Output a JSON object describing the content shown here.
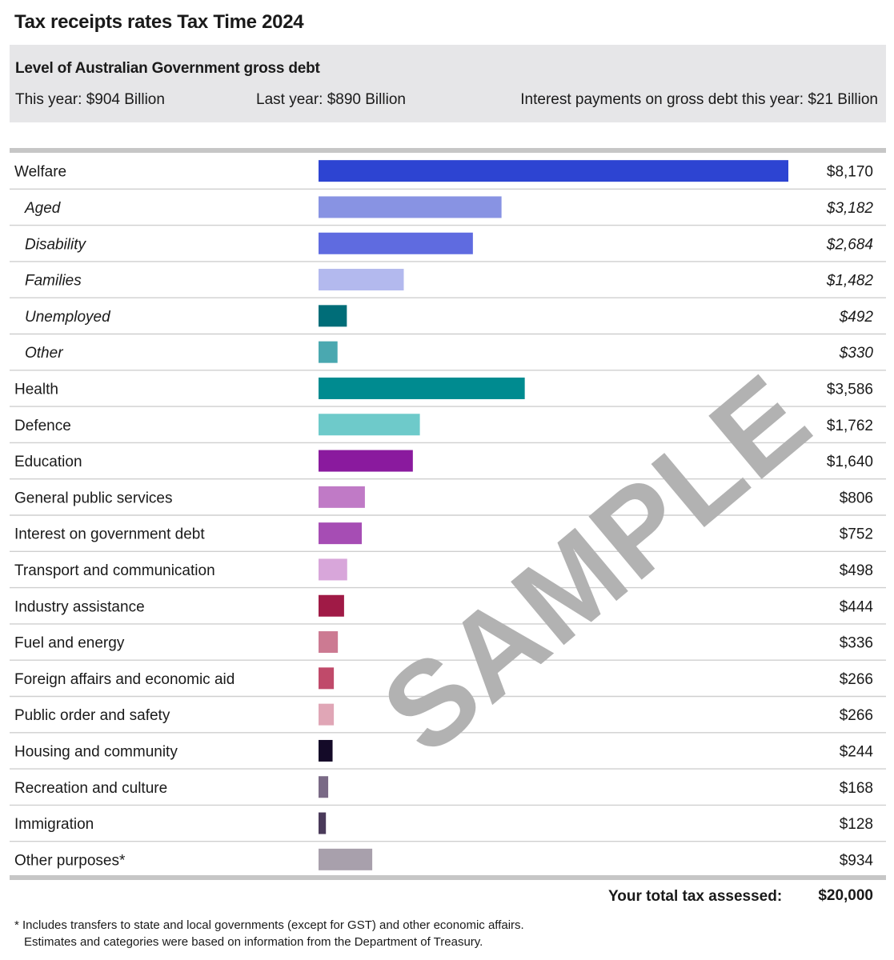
{
  "title": "Tax receipts rates Tax Time 2024",
  "debt": {
    "heading": "Level of Australian Government gross debt",
    "this_year": "This year: $904 Billion",
    "last_year": "Last year: $890 Billion",
    "interest": "Interest payments on gross debt this year: $21 Billion"
  },
  "chart_data": {
    "type": "bar",
    "orientation": "horizontal",
    "xlim": [
      0,
      8170
    ],
    "categories": [
      "Welfare",
      "Aged",
      "Disability",
      "Families",
      "Unemployed",
      "Other",
      "Health",
      "Defence",
      "Education",
      "General public services",
      "Interest on government debt",
      "Transport and communication",
      "Industry assistance",
      "Fuel and energy",
      "Foreign affairs and economic aid",
      "Public order and safety",
      "Housing and community",
      "Recreation and culture",
      "Immigration",
      "Other purposes*"
    ],
    "values": [
      8170,
      3182,
      2684,
      1482,
      492,
      330,
      3586,
      1762,
      1640,
      806,
      752,
      498,
      444,
      336,
      266,
      266,
      244,
      168,
      128,
      934
    ],
    "value_labels": [
      "$8,170",
      "$3,182",
      "$2,684",
      "$1,482",
      "$492",
      "$330",
      "$3,586",
      "$1,762",
      "$1,640",
      "$806",
      "$752",
      "$498",
      "$444",
      "$336",
      "$266",
      "$266",
      "$244",
      "$168",
      "$128",
      "$934"
    ],
    "subcategory": [
      false,
      true,
      true,
      true,
      true,
      true,
      false,
      false,
      false,
      false,
      false,
      false,
      false,
      false,
      false,
      false,
      false,
      false,
      false,
      false
    ],
    "colors": [
      "#2d44d2",
      "#8893e3",
      "#5f6be0",
      "#b3b9ee",
      "#006d78",
      "#4aa8b0",
      "#008b90",
      "#6ecaca",
      "#8a1a9e",
      "#c07ac6",
      "#a64db4",
      "#d8a6da",
      "#a01a46",
      "#cc7a92",
      "#c04a6a",
      "#e0a6b6",
      "#140a28",
      "#7a6a86",
      "#4a3a5a",
      "#a8a0ac"
    ]
  },
  "total": {
    "label": "Your total tax assessed:",
    "value": "$20,000"
  },
  "footnote": {
    "line1": "* Includes transfers to state and local governments (except for GST) and other economic affairs.",
    "line2": "Estimates and categories were based on information from the Department of Treasury."
  },
  "watermark": "SAMPLE"
}
